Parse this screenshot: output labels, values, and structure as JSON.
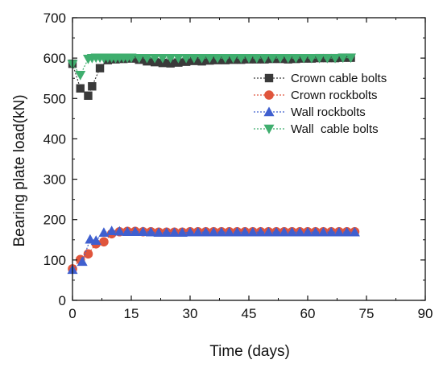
{
  "chart_data": {
    "type": "scatter",
    "title": "",
    "xlabel": "Time (days)",
    "ylabel": "Bearing plate load(kN)",
    "xlim": [
      0,
      90
    ],
    "ylim": [
      0,
      700
    ],
    "xticks": [
      0,
      15,
      30,
      45,
      60,
      75,
      90
    ],
    "yticks": [
      0,
      100,
      200,
      300,
      400,
      500,
      600,
      700
    ],
    "grid": false,
    "legend_position": "top-right",
    "series": [
      {
        "name": "Crown cable bolts",
        "marker": "square",
        "color": "#3a3a3a",
        "x": [
          0,
          2,
          4,
          5,
          7,
          9,
          11,
          13,
          15,
          17,
          19,
          21,
          23,
          25,
          27,
          29,
          31,
          33,
          35,
          37,
          39,
          41,
          43,
          45,
          47,
          49,
          51,
          53,
          55,
          57,
          59,
          61,
          63,
          65,
          67,
          69,
          71
        ],
        "y": [
          586,
          525,
          507,
          530,
          575,
          595,
          597,
          598,
          599,
          596,
          592,
          590,
          588,
          587,
          589,
          591,
          593,
          592,
          594,
          595,
          595,
          596,
          596,
          597,
          597,
          597,
          598,
          598,
          597,
          598,
          599,
          599,
          600,
          600,
          600,
          601,
          601
        ]
      },
      {
        "name": "Crown rockbolts",
        "marker": "circle",
        "color": "#e0553c",
        "x": [
          0,
          2,
          4,
          6,
          8,
          10,
          12,
          14,
          16,
          18,
          20,
          22,
          24,
          26,
          28,
          30,
          32,
          34,
          36,
          38,
          40,
          42,
          44,
          46,
          48,
          50,
          52,
          54,
          56,
          58,
          60,
          62,
          64,
          66,
          68,
          70,
          72
        ],
        "y": [
          78,
          101,
          115,
          140,
          145,
          165,
          170,
          171,
          171,
          170,
          170,
          169,
          169,
          169,
          169,
          170,
          170,
          170,
          170,
          170,
          170,
          170,
          170,
          170,
          170,
          170,
          170,
          170,
          170,
          170,
          170,
          170,
          170,
          170,
          170,
          170,
          170
        ]
      },
      {
        "name": "Wall rockbolts",
        "marker": "triangle-up",
        "color": "#3f5fcf",
        "x": [
          0,
          2.5,
          4.5,
          6,
          8,
          10,
          12,
          14,
          16,
          18,
          20,
          22,
          24,
          26,
          28,
          30,
          32,
          34,
          36,
          38,
          40,
          42,
          44,
          46,
          48,
          50,
          52,
          54,
          56,
          58,
          60,
          62,
          64,
          66,
          68,
          70,
          72
        ],
        "y": [
          76,
          96,
          151,
          148,
          168,
          172,
          171,
          170,
          170,
          170,
          169,
          168,
          168,
          168,
          168,
          169,
          169,
          169,
          169,
          169,
          169,
          169,
          169,
          169,
          169,
          169,
          169,
          169,
          169,
          169,
          169,
          169,
          169,
          169,
          169,
          169,
          169
        ]
      },
      {
        "name": "Wall  cable bolts",
        "marker": "triangle-down",
        "color": "#3fae6e",
        "x": [
          0,
          2,
          4,
          5,
          6,
          7,
          8,
          9,
          10,
          11,
          12,
          13,
          14,
          15,
          17,
          19,
          21,
          23,
          25,
          27,
          29,
          31,
          33,
          35,
          37,
          39,
          41,
          43,
          45,
          47,
          49,
          51,
          53,
          55,
          57,
          59,
          61,
          63,
          65,
          67,
          69,
          71
        ],
        "y": [
          585,
          558,
          598,
          600,
          601,
          601,
          600,
          601,
          601,
          600,
          601,
          601,
          601,
          601,
          600,
          600,
          600,
          600,
          600,
          600,
          600,
          600,
          600,
          600,
          600,
          600,
          600,
          600,
          600,
          600,
          600,
          600,
          600,
          600,
          600,
          600,
          600,
          600,
          600,
          600,
          601,
          601
        ]
      }
    ]
  }
}
